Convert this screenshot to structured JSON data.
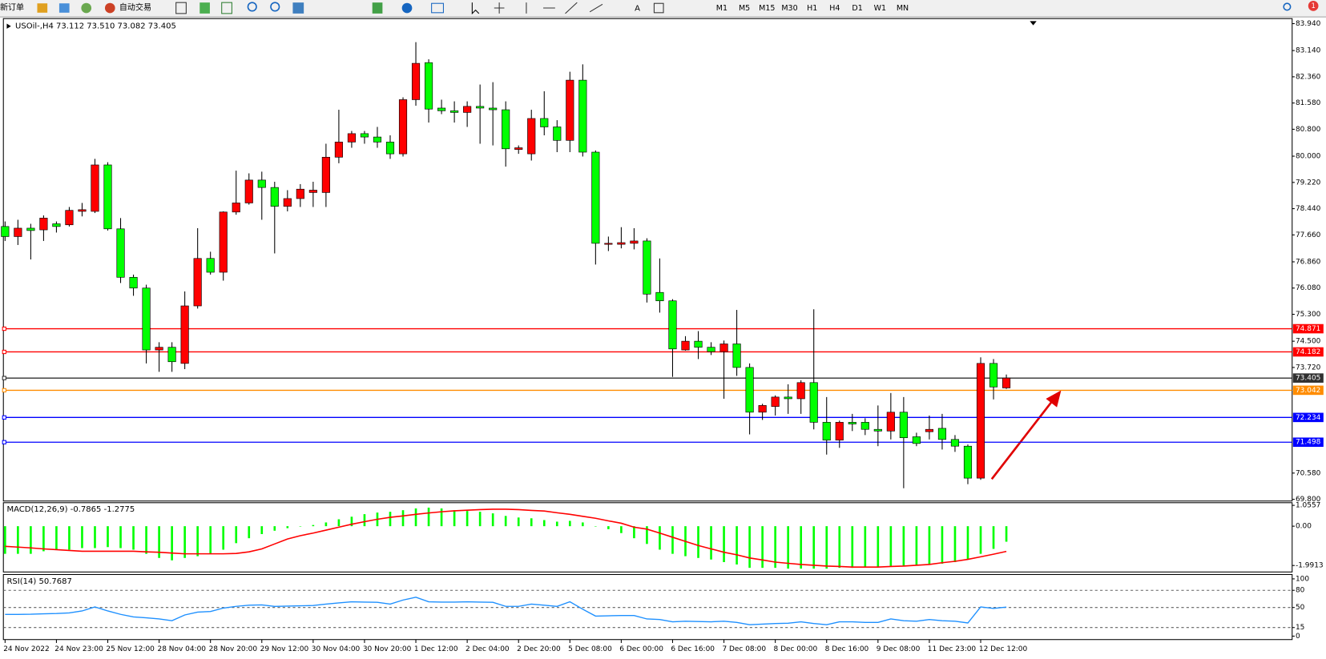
{
  "toolbar": {
    "new_order": "新订单",
    "auto_trading": "自动交易",
    "timeframes": [
      "M1",
      "M5",
      "M15",
      "M30",
      "H1",
      "H4",
      "D1",
      "W1",
      "MN"
    ],
    "notification_count": 1
  },
  "chart_data": [
    {
      "type": "candlestick",
      "title": "USOil-,H4 73.112 73.510 73.082 73.405",
      "up_color": "#ff0000",
      "down_color": "#00ff00",
      "categories": [
        "24 Nov 2022",
        null,
        null,
        null,
        "24 Nov 23:00",
        null,
        null,
        null,
        "25 Nov 12:00",
        null,
        null,
        null,
        "28 Nov 04:00",
        null,
        null,
        null,
        "28 Nov 20:00",
        null,
        null,
        null,
        "29 Nov 12:00",
        null,
        null,
        null,
        "30 Nov 04:00",
        null,
        null,
        null,
        "30 Nov 20:00",
        null,
        null,
        null,
        "1 Dec 12:00",
        null,
        null,
        null,
        "2 Dec 04:00",
        null,
        null,
        null,
        "2 Dec 20:00",
        null,
        null,
        null,
        "5 Dec 08:00",
        null,
        null,
        null,
        "6 Dec 00:00",
        null,
        null,
        null,
        "6 Dec 16:00",
        null,
        null,
        null,
        "7 Dec 08:00",
        null,
        null,
        null,
        "8 Dec 00:00",
        null,
        null,
        null,
        "8 Dec 16:00",
        null,
        null,
        null,
        "9 Dec 08:00",
        null,
        null,
        null,
        "11 Dec 23:00",
        null,
        null,
        null,
        "12 Dec 12:00",
        null,
        null
      ],
      "open": [
        77.91,
        77.61,
        77.86,
        77.81,
        77.99,
        77.96,
        78.36,
        78.36,
        79.74,
        77.84,
        76.4,
        76.08,
        74.24,
        74.32,
        73.84,
        75.55,
        76.96,
        76.55,
        78.34,
        78.61,
        79.29,
        79.07,
        78.51,
        78.74,
        78.92,
        78.92,
        79.97,
        80.42,
        80.67,
        80.57,
        80.42,
        80.07,
        81.68,
        82.78,
        81.43,
        81.35,
        81.3,
        81.48,
        81.43,
        81.38,
        80.2,
        80.07,
        81.12,
        80.87,
        80.47,
        82.26,
        80.12,
        77.38,
        77.38,
        77.41,
        77.48,
        75.95,
        75.7,
        74.24,
        74.5,
        74.32,
        74.19,
        74.42,
        73.72,
        72.39,
        72.56,
        72.84,
        72.79,
        73.27,
        72.09,
        71.56,
        72.09,
        72.09,
        71.88,
        71.83,
        72.39,
        71.66,
        71.81,
        71.91,
        71.58,
        71.38,
        70.43,
        73.84,
        73.112
      ],
      "high": [
        78.06,
        78.11,
        77.99,
        78.24,
        78.06,
        78.49,
        78.61,
        79.92,
        79.82,
        78.16,
        76.48,
        76.18,
        74.47,
        74.47,
        75.98,
        77.86,
        77.16,
        78.36,
        79.57,
        79.49,
        79.54,
        79.24,
        78.99,
        79.17,
        79.24,
        80.37,
        81.38,
        80.75,
        80.75,
        80.87,
        80.62,
        81.75,
        83.39,
        82.88,
        81.68,
        81.63,
        81.63,
        82.13,
        82.2,
        81.63,
        80.32,
        81.38,
        81.93,
        81.07,
        82.51,
        82.73,
        80.17,
        77.61,
        77.89,
        77.86,
        77.56,
        76.96,
        75.75,
        74.65,
        74.8,
        74.47,
        74.52,
        75.43,
        73.84,
        72.64,
        72.89,
        73.22,
        73.34,
        75.45,
        72.84,
        72.14,
        72.34,
        72.21,
        72.59,
        72.96,
        72.84,
        71.78,
        72.29,
        72.34,
        71.71,
        71.43,
        74.02,
        73.97,
        73.51
      ],
      "low": [
        77.48,
        77.36,
        76.93,
        77.48,
        77.73,
        77.91,
        78.21,
        78.31,
        77.79,
        76.23,
        75.85,
        73.84,
        73.59,
        73.59,
        73.67,
        75.47,
        76.48,
        76.3,
        78.26,
        78.56,
        78.11,
        77.11,
        78.36,
        78.49,
        78.49,
        78.49,
        79.79,
        80.25,
        80.37,
        80.25,
        79.92,
        79.99,
        81.5,
        81.0,
        81.25,
        81.0,
        80.87,
        80.37,
        80.32,
        79.69,
        80.07,
        79.87,
        80.62,
        80.12,
        80.12,
        79.99,
        76.78,
        77.18,
        77.26,
        77.23,
        75.65,
        75.35,
        73.44,
        74.22,
        73.97,
        74.09,
        72.79,
        73.47,
        71.73,
        72.16,
        72.29,
        72.34,
        72.34,
        71.88,
        71.13,
        71.33,
        71.83,
        71.71,
        71.38,
        71.58,
        70.13,
        71.38,
        71.58,
        71.28,
        71.21,
        70.25,
        70.38,
        72.77,
        73.082
      ],
      "close": [
        77.61,
        77.86,
        77.79,
        78.16,
        77.91,
        78.39,
        78.41,
        79.74,
        77.84,
        76.4,
        76.08,
        74.24,
        74.32,
        73.89,
        75.55,
        76.96,
        76.55,
        78.34,
        78.61,
        79.29,
        79.07,
        78.51,
        78.74,
        79.02,
        78.99,
        79.97,
        80.42,
        80.67,
        80.57,
        80.42,
        80.07,
        81.68,
        82.76,
        81.4,
        81.35,
        81.3,
        81.48,
        81.43,
        81.38,
        80.22,
        80.25,
        81.12,
        80.87,
        80.47,
        82.26,
        80.12,
        77.41,
        77.41,
        77.43,
        77.48,
        75.9,
        75.7,
        74.27,
        74.5,
        74.32,
        74.19,
        74.42,
        73.72,
        72.39,
        72.59,
        72.84,
        72.79,
        73.27,
        72.09,
        71.56,
        72.09,
        72.04,
        71.88,
        71.83,
        72.39,
        71.63,
        71.46,
        71.88,
        71.58,
        71.38,
        70.43,
        73.84,
        73.14,
        73.405
      ],
      "ylim": [
        69.75,
        84.09
      ],
      "yticks": [
        {
          "value": 83.94,
          "label": "83.940"
        },
        {
          "value": 83.14,
          "label": "83.140"
        },
        {
          "value": 82.36,
          "label": "82.360"
        },
        {
          "value": 81.58,
          "label": "81.580"
        },
        {
          "value": 80.8,
          "label": "80.800"
        },
        {
          "value": 80,
          "label": "80.000"
        },
        {
          "value": 79.22,
          "label": "79.220"
        },
        {
          "value": 78.44,
          "label": "78.440"
        },
        {
          "value": 77.66,
          "label": "77.660"
        },
        {
          "value": 76.86,
          "label": "76.860"
        },
        {
          "value": 76.08,
          "label": "76.080"
        },
        {
          "value": 75.3,
          "label": "75.300"
        },
        {
          "value": 74.5,
          "label": "74.500"
        },
        {
          "value": 73.72,
          "label": "73.720"
        },
        {
          "value": 70.58,
          "label": "70.580"
        },
        {
          "value": 69.8,
          "label": "69.800"
        }
      ],
      "hlines": [
        {
          "value": 74.871,
          "color": "#ff0000"
        },
        {
          "value": 74.182,
          "color": "#ff0000"
        },
        {
          "value": 73.405,
          "color": "#303030"
        },
        {
          "value": 73.042,
          "color": "#ff8c00"
        },
        {
          "value": 72.234,
          "color": "#0000ff"
        },
        {
          "value": 71.498,
          "color": "#0000ff"
        }
      ]
    },
    {
      "type": "macd",
      "title": "MACD(12,26,9) -0.7865 -1.2775",
      "series": [
        {
          "name": "MACD",
          "color": "#00ff00",
          "values": [
            -1.4,
            -1.4,
            -1.4,
            -1.27,
            -1.19,
            -1.19,
            -1.11,
            -1.11,
            -1.06,
            -1.11,
            -1.19,
            -1.4,
            -1.61,
            -1.73,
            -1.61,
            -1.52,
            -1.4,
            -1.19,
            -0.86,
            -0.61,
            -0.4,
            -0.23,
            -0.1,
            -0.02,
            0.06,
            0.19,
            0.35,
            0.48,
            0.61,
            0.69,
            0.73,
            0.81,
            0.9,
            0.94,
            0.9,
            0.81,
            0.77,
            0.73,
            0.65,
            0.52,
            0.44,
            0.4,
            0.31,
            0.23,
            0.27,
            0.19,
            -0.02,
            -0.15,
            -0.35,
            -0.61,
            -0.9,
            -1.19,
            -1.4,
            -1.52,
            -1.61,
            -1.69,
            -1.82,
            -1.94,
            -2.11,
            -2.11,
            -2.11,
            -2.15,
            -2.15,
            -2.15,
            -2.15,
            -2.11,
            -2.11,
            -2.07,
            -2.07,
            -2.02,
            -2.02,
            -1.98,
            -1.94,
            -1.9,
            -1.82,
            -1.69,
            -1.4,
            -1.15,
            -0.7865
          ]
        },
        {
          "name": "Signal",
          "color": "#ff0000",
          "values": [
            -1.02,
            -1.06,
            -1.1,
            -1.15,
            -1.19,
            -1.23,
            -1.27,
            -1.27,
            -1.27,
            -1.27,
            -1.27,
            -1.3,
            -1.32,
            -1.36,
            -1.4,
            -1.4,
            -1.4,
            -1.4,
            -1.38,
            -1.3,
            -1.15,
            -0.9,
            -0.65,
            -0.48,
            -0.35,
            -0.2,
            -0.05,
            0.1,
            0.23,
            0.35,
            0.45,
            0.52,
            0.6,
            0.67,
            0.73,
            0.78,
            0.81,
            0.84,
            0.86,
            0.86,
            0.84,
            0.8,
            0.77,
            0.68,
            0.6,
            0.5,
            0.4,
            0.27,
            0.15,
            -0.05,
            -0.15,
            -0.35,
            -0.56,
            -0.77,
            -0.98,
            -1.15,
            -1.32,
            -1.45,
            -1.61,
            -1.71,
            -1.82,
            -1.88,
            -1.94,
            -1.98,
            -2.02,
            -2.04,
            -2.07,
            -2.07,
            -2.07,
            -2.04,
            -2.02,
            -1.98,
            -1.94,
            -1.85,
            -1.78,
            -1.68,
            -1.55,
            -1.42,
            -1.2775
          ]
        }
      ],
      "ylim": [
        -2.32,
        1.19
      ],
      "yticks": [
        1.0557,
        {
          "value": 0,
          "label": "0.00"
        },
        -1.9913
      ]
    },
    {
      "type": "rsi",
      "title": "RSI(14) 50.7687",
      "series": [
        {
          "name": "RSI",
          "color": "#1e90ff",
          "values": [
            37.9,
            38.0,
            38.2,
            39.0,
            39.5,
            40.5,
            44.0,
            51.0,
            44.0,
            38.0,
            33.5,
            32.0,
            30.0,
            27.0,
            37.0,
            42.0,
            43.0,
            49.0,
            52.0,
            54.0,
            54.5,
            52.0,
            52.5,
            53.0,
            53.5,
            56.0,
            58.0,
            60.0,
            59.5,
            59.0,
            56.0,
            63.0,
            68.0,
            60.0,
            59.5,
            59.5,
            60.0,
            59.5,
            59.0,
            52.0,
            52.0,
            56.0,
            54.0,
            52.0,
            60.0,
            47.0,
            35.0,
            35.5,
            36.0,
            36.0,
            30.0,
            29.0,
            25.0,
            26.0,
            25.5,
            25.0,
            26.0,
            24.0,
            20.0,
            21.0,
            22.0,
            22.5,
            25.0,
            22.0,
            20.0,
            25.0,
            25.0,
            24.0,
            24.0,
            30.0,
            27.0,
            26.0,
            29.0,
            27.0,
            26.0,
            23.0,
            51.0,
            48.5,
            50.7687
          ]
        }
      ],
      "ylim": [
        -6,
        107.6
      ],
      "yticks": [
        100,
        80,
        50,
        15,
        0
      ],
      "levels": [
        80,
        50,
        15
      ]
    }
  ]
}
